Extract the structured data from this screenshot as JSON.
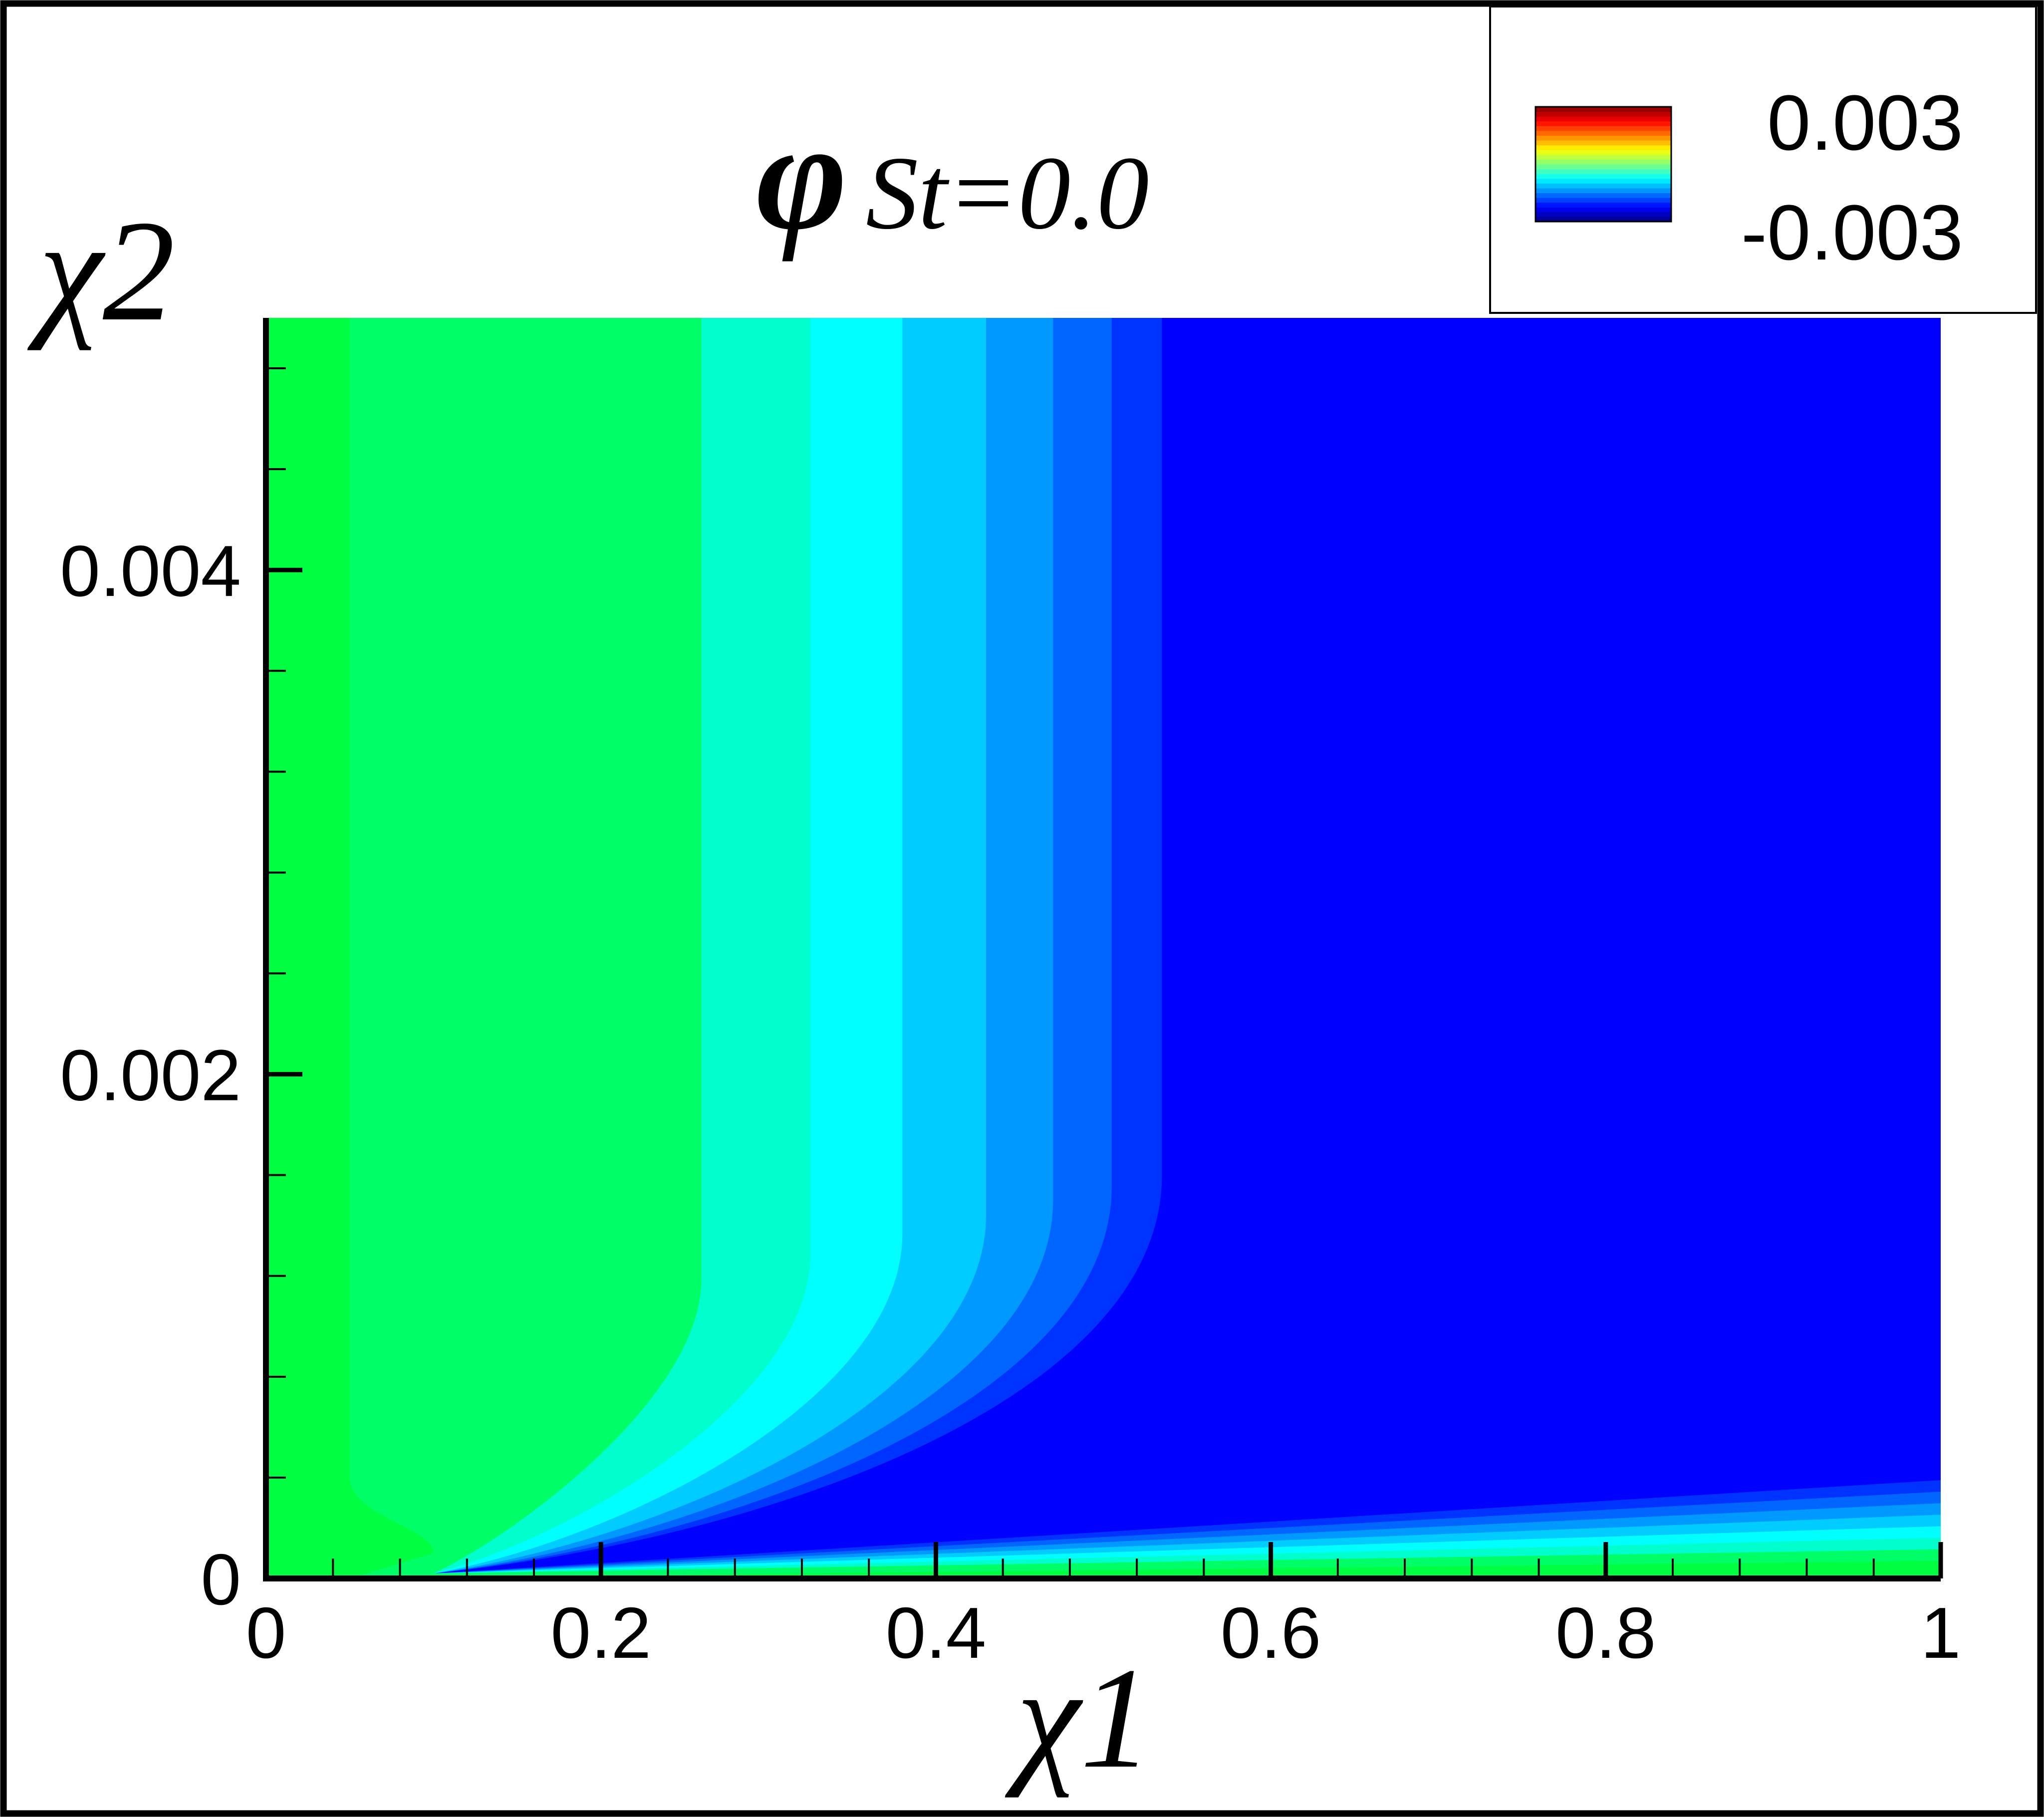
{
  "chart_data": {
    "type": "contour",
    "title": "φ",
    "title_subscript": "St=0.0",
    "xlabel": "χ1",
    "ylabel": "χ2",
    "xlim": [
      0,
      1
    ],
    "ylim": [
      0,
      0.005
    ],
    "xticks": [
      0,
      0.2,
      0.4,
      0.6,
      0.8,
      1
    ],
    "yticks": [
      0,
      0.002,
      0.004
    ],
    "xminorticks": [
      0.04,
      0.08,
      0.12,
      0.16,
      0.24,
      0.28,
      0.32,
      0.36,
      0.44,
      0.48,
      0.52,
      0.56,
      0.64,
      0.68,
      0.72,
      0.76,
      0.84,
      0.88,
      0.92,
      0.96
    ],
    "yminorticks": [
      0.0004,
      0.0008,
      0.0012,
      0.0016,
      0.0024,
      0.0028,
      0.0032,
      0.0036,
      0.0044,
      0.0048
    ],
    "clim": [
      -0.003,
      0.003
    ],
    "levels": [
      {
        "value": -0.003,
        "color": "#0000ff"
      },
      {
        "value": -0.0025,
        "color": "#0033ff"
      },
      {
        "value": -0.002,
        "color": "#0066ff"
      },
      {
        "value": -0.0017,
        "color": "#0099ff"
      },
      {
        "value": -0.0013,
        "color": "#00ccff"
      },
      {
        "value": -0.001,
        "color": "#00ffff"
      },
      {
        "value": -0.0008,
        "color": "#00ffcc"
      },
      {
        "value": -0.0004,
        "color": "#00ff66"
      },
      {
        "value": -0.0002,
        "color": "#00ff40"
      }
    ]
  }
}
